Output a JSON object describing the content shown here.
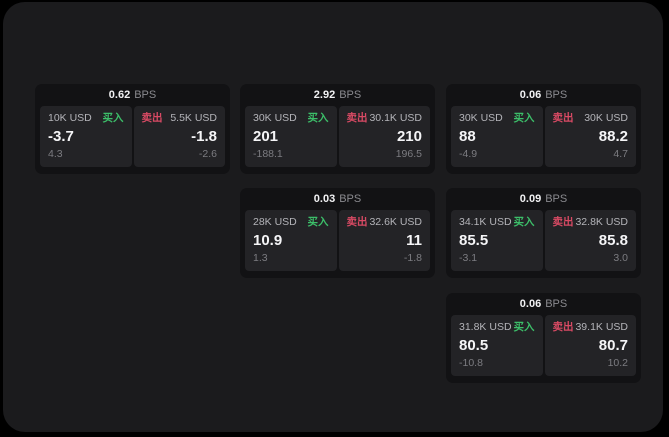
{
  "colors": {
    "buy": "#3cbe69",
    "sell": "#d94a64",
    "panel_bg": "#1b1b1d",
    "card_bg": "#121214",
    "subpanel_bg": "#232326"
  },
  "cards": [
    {
      "row": 0,
      "col": 0,
      "bps_value": "0.62",
      "bps_unit": "BPS",
      "buy": {
        "size": "10K USD",
        "side_label": "买入",
        "value": "-3.7",
        "sub_value": "4.3"
      },
      "sell": {
        "size": "5.5K USD",
        "side_label": "卖出",
        "value": "-1.8",
        "sub_value": "-2.6"
      }
    },
    {
      "row": 0,
      "col": 1,
      "bps_value": "2.92",
      "bps_unit": "BPS",
      "buy": {
        "size": "30K USD",
        "side_label": "买入",
        "value": "201",
        "sub_value": "-188.1"
      },
      "sell": {
        "size": "30.1K USD",
        "side_label": "卖出",
        "value": "210",
        "sub_value": "196.5"
      }
    },
    {
      "row": 0,
      "col": 2,
      "bps_value": "0.06",
      "bps_unit": "BPS",
      "buy": {
        "size": "30K USD",
        "side_label": "买入",
        "value": "88",
        "sub_value": "-4.9"
      },
      "sell": {
        "size": "30K USD",
        "side_label": "卖出",
        "value": "88.2",
        "sub_value": "4.7"
      }
    },
    {
      "row": 1,
      "col": 1,
      "bps_value": "0.03",
      "bps_unit": "BPS",
      "buy": {
        "size": "28K USD",
        "side_label": "买入",
        "value": "10.9",
        "sub_value": "1.3"
      },
      "sell": {
        "size": "32.6K USD",
        "side_label": "卖出",
        "value": "11",
        "sub_value": "-1.8"
      }
    },
    {
      "row": 1,
      "col": 2,
      "bps_value": "0.09",
      "bps_unit": "BPS",
      "buy": {
        "size": "34.1K USD",
        "side_label": "买入",
        "value": "85.5",
        "sub_value": "-3.1"
      },
      "sell": {
        "size": "32.8K USD",
        "side_label": "卖出",
        "value": "85.8",
        "sub_value": "3.0"
      }
    },
    {
      "row": 2,
      "col": 2,
      "bps_value": "0.06",
      "bps_unit": "BPS",
      "buy": {
        "size": "31.8K USD",
        "side_label": "买入",
        "value": "80.5",
        "sub_value": "-10.8"
      },
      "sell": {
        "size": "39.1K USD",
        "side_label": "卖出",
        "value": "80.7",
        "sub_value": "10.2"
      }
    }
  ]
}
